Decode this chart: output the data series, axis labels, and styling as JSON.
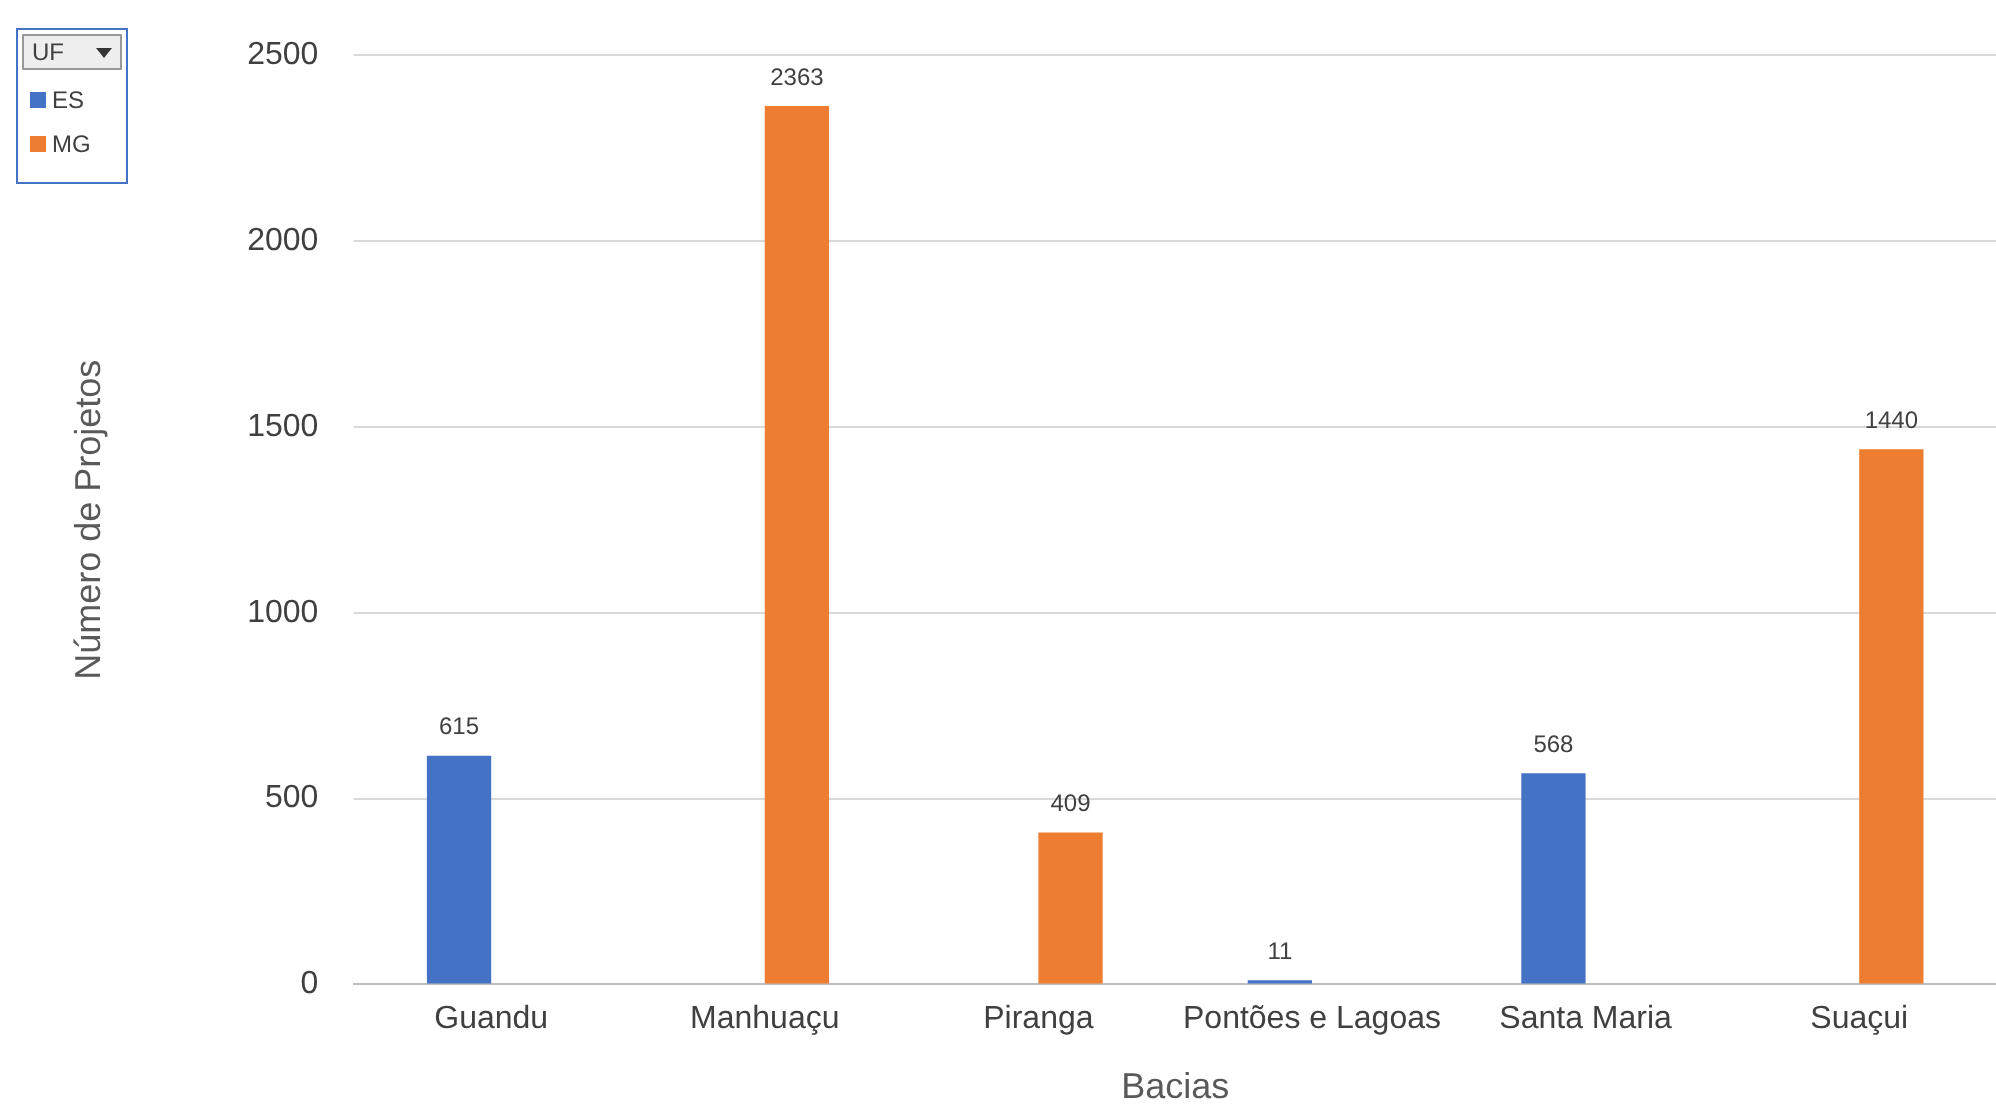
{
  "chart_data": {
    "type": "bar",
    "xlabel": "Bacias",
    "ylabel": "Número de Projetos",
    "legend_title": "UF",
    "categories": [
      "Guandu",
      "Manhuaçu",
      "Piranga",
      "Pontões e Lagoas",
      "Santa Maria",
      "Suaçui"
    ],
    "series": [
      {
        "name": "ES",
        "color": "#4472c4",
        "values": [
          615,
          null,
          null,
          11,
          568,
          null
        ]
      },
      {
        "name": "MG",
        "color": "#ed7d31",
        "values": [
          null,
          2363,
          409,
          null,
          null,
          1440
        ]
      }
    ],
    "ylim": [
      0,
      2500
    ],
    "yticks": [
      0,
      500,
      1000,
      1500,
      2000,
      2500
    ],
    "grid": "y",
    "legend": "top left",
    "data_labels": true
  }
}
